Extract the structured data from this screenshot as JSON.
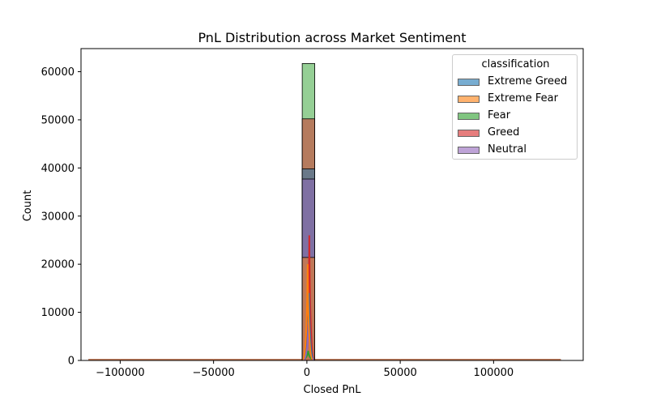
{
  "chart_data": {
    "type": "histogram",
    "title": "PnL Distribution across Market Sentiment",
    "xlabel": "Closed PnL",
    "ylabel": "Count",
    "xlim": [
      -121000,
      148000
    ],
    "ylim": [
      0,
      64800
    ],
    "xticks": [
      -100000,
      -50000,
      0,
      50000,
      100000
    ],
    "xtick_labels": [
      "−100000",
      "−50000",
      "0",
      "50000",
      "100000"
    ],
    "yticks": [
      0,
      10000,
      20000,
      30000,
      40000,
      50000,
      60000
    ],
    "ytick_labels": [
      "0",
      "10000",
      "20000",
      "30000",
      "40000",
      "50000",
      "60000"
    ],
    "central_bin": [
      -2500,
      4200
    ],
    "legend": {
      "title": "classification",
      "placement": "upper right"
    },
    "series": [
      {
        "name": "Fear",
        "color": "#2ca02c",
        "count": 61700,
        "kde_peak": 2000
      },
      {
        "name": "Greed",
        "color": "#d62728",
        "count": 50200,
        "kde_peak": 26000
      },
      {
        "name": "Extreme Greed",
        "color": "#1f77b4",
        "count": 39800,
        "kde_peak": 14000
      },
      {
        "name": "Neutral",
        "color": "#9467bd",
        "count": 37700,
        "kde_peak": 8000
      },
      {
        "name": "Extreme Fear",
        "color": "#ff7f0e",
        "count": 21400,
        "kde_peak": 20000
      }
    ],
    "legend_order": [
      "Extreme Greed",
      "Extreme Fear",
      "Fear",
      "Greed",
      "Neutral"
    ],
    "grid": false
  }
}
